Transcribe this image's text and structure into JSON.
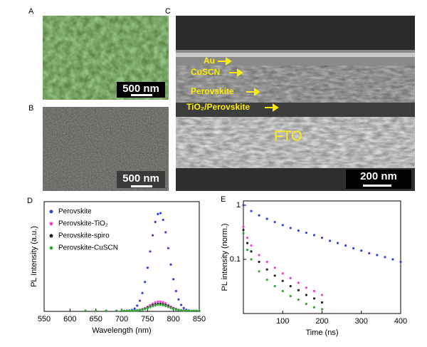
{
  "panels": [
    {
      "label": "A",
      "scale_bar": "500 nm"
    },
    {
      "label": "B",
      "scale_bar": "500 nm"
    },
    {
      "label": "C",
      "scale_bar": "200 nm",
      "layer_labels": [
        "Au",
        "CuSCN",
        "Perovskite",
        "TiO₂/Perovskite",
        "FTO"
      ]
    }
  ],
  "chart_data": [
    {
      "type": "scatter",
      "label": "D",
      "xlabel": "Wavelength (nm)",
      "ylabel": "PL Intensity (a.u.)",
      "xlim": [
        550,
        850
      ],
      "xticks": [
        550,
        600,
        650,
        700,
        750,
        800,
        850
      ],
      "ylim": [
        0,
        100
      ],
      "legend": "upper-left",
      "x": [
        630,
        650,
        670,
        690,
        700,
        705,
        710,
        715,
        720,
        725,
        730,
        735,
        740,
        745,
        750,
        755,
        760,
        765,
        770,
        775,
        780,
        785,
        790,
        795,
        800,
        805,
        810,
        815,
        820,
        825,
        830,
        835,
        840,
        845,
        850
      ],
      "series": [
        {
          "name": "Perovskite",
          "color": "#3344dd",
          "values": [
            0.3,
            0.3,
            0.3,
            0.3,
            0.3,
            0.4,
            0.5,
            0.8,
            1.2,
            2.5,
            5.2,
            9.7,
            16.7,
            26.8,
            39.8,
            54.6,
            69.3,
            81.5,
            88.7,
            89.5,
            83.4,
            72.1,
            57.6,
            42.7,
            29.3,
            18.5,
            10.9,
            5.9,
            3.0,
            1.4,
            0.8,
            0.5,
            0.4,
            0.3,
            0.3
          ]
        },
        {
          "name": "Perovskite-TiO₂",
          "color": "#ee44cc",
          "values": [
            0.5,
            0.5,
            0.5,
            0.5,
            0.5,
            0.5,
            0.5,
            0.6,
            0.6,
            0.7,
            1.0,
            1.4,
            2.1,
            3.0,
            4.3,
            5.7,
            7.0,
            8.2,
            8.9,
            8.9,
            8.4,
            7.3,
            5.9,
            4.5,
            3.3,
            2.3,
            1.5,
            1.1,
            0.8,
            0.6,
            0.6,
            0.5,
            0.5,
            0.5,
            0.5
          ]
        },
        {
          "name": "Perovskite-spiro",
          "color": "#222222",
          "values": [
            0.5,
            0.5,
            0.5,
            0.5,
            0.5,
            0.5,
            0.5,
            0.5,
            0.6,
            0.7,
            0.9,
            1.2,
            1.7,
            2.4,
            3.4,
            4.4,
            5.5,
            6.4,
            6.9,
            7.0,
            6.5,
            5.7,
            4.7,
            3.6,
            2.6,
            1.8,
            1.3,
            0.9,
            0.7,
            0.6,
            0.5,
            0.5,
            0.5,
            0.5,
            0.5
          ]
        },
        {
          "name": "Perovskite-CuSCN",
          "color": "#33aa33",
          "values": [
            0.5,
            0.5,
            0.5,
            0.5,
            0.5,
            0.5,
            0.5,
            0.5,
            0.6,
            0.7,
            0.8,
            1.1,
            1.5,
            2.1,
            2.9,
            3.8,
            4.7,
            5.5,
            5.9,
            6.0,
            5.6,
            4.9,
            4.0,
            3.1,
            2.3,
            1.6,
            1.2,
            0.9,
            0.7,
            0.6,
            0.5,
            0.5,
            0.5,
            0.5,
            0.5
          ]
        }
      ]
    },
    {
      "type": "scatter",
      "label": "E",
      "xlabel": "Time (ns)",
      "ylabel": "PL intensity (norm.)",
      "xlim": [
        0,
        400
      ],
      "xticks": [
        100,
        200,
        300,
        400
      ],
      "ylim": [
        0.01,
        1.2
      ],
      "yticks": [
        1,
        0.1
      ],
      "ylog": true,
      "series": [
        {
          "color": "#3344dd",
          "x": [
            0,
            20,
            40,
            60,
            80,
            100,
            120,
            140,
            160,
            180,
            200,
            220,
            240,
            260,
            280,
            300,
            320,
            340,
            360,
            380,
            400
          ],
          "values": [
            1.0,
            0.78,
            0.65,
            0.56,
            0.49,
            0.43,
            0.38,
            0.34,
            0.31,
            0.28,
            0.25,
            0.22,
            0.2,
            0.18,
            0.16,
            0.145,
            0.13,
            0.12,
            0.11,
            0.1,
            0.09
          ]
        },
        {
          "color": "#ee44cc",
          "x": [
            0,
            10,
            20,
            40,
            60,
            80,
            100,
            120,
            140,
            160,
            180,
            200
          ],
          "values": [
            0.4,
            0.25,
            0.18,
            0.12,
            0.09,
            0.07,
            0.055,
            0.045,
            0.037,
            0.03,
            0.026,
            0.022
          ]
        },
        {
          "color": "#222222",
          "x": [
            0,
            10,
            20,
            40,
            60,
            80,
            100,
            120,
            140,
            160,
            180,
            200
          ],
          "values": [
            0.35,
            0.2,
            0.14,
            0.09,
            0.065,
            0.05,
            0.04,
            0.032,
            0.027,
            0.022,
            0.019,
            0.016
          ]
        },
        {
          "color": "#33aa33",
          "x": [
            0,
            10,
            20,
            40,
            60,
            80,
            100,
            120,
            140,
            160,
            180,
            200
          ],
          "values": [
            0.3,
            0.15,
            0.1,
            0.06,
            0.042,
            0.032,
            0.026,
            0.021,
            0.018,
            0.015,
            0.013,
            0.012
          ]
        }
      ]
    }
  ]
}
